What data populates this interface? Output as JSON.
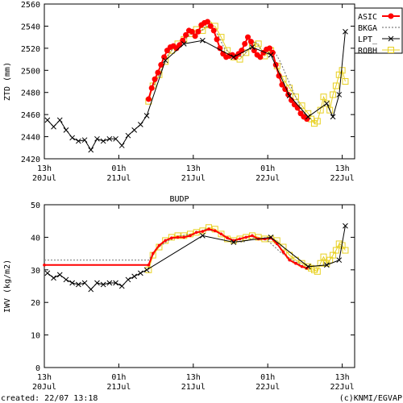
{
  "footer": {
    "created": "created: 22/07 13:18",
    "credit": "(c)KNMI/EGVAP"
  },
  "colors": {
    "asic": "#ff0000",
    "bkga": "#808080",
    "lpt": "#000000",
    "robh": "#e8d020",
    "robh_fill": "#ffffa0",
    "axis": "#000000"
  },
  "chart_data": [
    {
      "type": "line",
      "title": "",
      "ylabel": "ZTD (mm)",
      "xlabel": "",
      "x_ticks_top_line": [
        "13h",
        "01h",
        "13h",
        "01h",
        "13h"
      ],
      "x_ticks_bottom_line": [
        "20Jul",
        "21Jul",
        "21Jul",
        "22Jul",
        "22Jul"
      ],
      "x_ticks_hours": [
        0,
        12,
        24,
        36,
        48
      ],
      "xlim_hours": [
        0,
        50
      ],
      "ylim": [
        2420,
        2560
      ],
      "yticks": [
        2420,
        2440,
        2460,
        2480,
        2500,
        2520,
        2540,
        2560
      ],
      "legend": {
        "placement": "top-right outside",
        "entries": [
          "ASIC",
          "BKGA",
          "LPT_",
          "ROBH"
        ]
      },
      "series": [
        {
          "name": "ASIC",
          "style": "filled red circles joined by line",
          "x": [
            16.8,
            17.3,
            17.8,
            18.3,
            18.8,
            19.3,
            19.8,
            20.3,
            20.8,
            21.3,
            21.8,
            22.3,
            22.8,
            23.3,
            23.8,
            24.3,
            24.8,
            25.3,
            25.8,
            26.3,
            26.8,
            27.3,
            27.8,
            28.3,
            28.8,
            29.3,
            29.8,
            30.3,
            30.8,
            31.3,
            31.8,
            32.3,
            32.8,
            33.3,
            33.8,
            34.3,
            34.8,
            35.3,
            35.8,
            36.3,
            36.8,
            37.3,
            37.8,
            38.3,
            38.8,
            39.3,
            39.8,
            40.3,
            40.8,
            41.3,
            41.8,
            42.3
          ],
          "y": [
            2474,
            2484,
            2492,
            2498,
            2505,
            2512,
            2518,
            2521,
            2522,
            2520,
            2523,
            2527,
            2532,
            2536,
            2535,
            2531,
            2535,
            2541,
            2543,
            2544,
            2540,
            2536,
            2528,
            2520,
            2515,
            2512,
            2513,
            2514,
            2512,
            2515,
            2518,
            2524,
            2530,
            2526,
            2518,
            2514,
            2512,
            2516,
            2519,
            2520,
            2516,
            2505,
            2495,
            2487,
            2483,
            2478,
            2473,
            2469,
            2466,
            2461,
            2458,
            2456
          ]
        },
        {
          "name": "BKGA",
          "style": "grey dotted line",
          "x": [
            16.8,
            18.0,
            19.0,
            20.0,
            21.0,
            22.0,
            23.0,
            24.0,
            25.0,
            26.0,
            27.0,
            28.0,
            29.0,
            30.0,
            31.0,
            32.0,
            33.0,
            34.0,
            35.0,
            36.0,
            37.0,
            38.0,
            39.0,
            40.0,
            41.0,
            42.0
          ],
          "y": [
            2476,
            2490,
            2502,
            2515,
            2521,
            2523,
            2530,
            2534,
            2534,
            2540,
            2538,
            2532,
            2520,
            2515,
            2512,
            2513,
            2520,
            2526,
            2518,
            2515,
            2518,
            2508,
            2495,
            2482,
            2470,
            2460
          ]
        },
        {
          "name": "LPT_",
          "style": "black crosses joined by line",
          "x": [
            0.5,
            1.5,
            2.5,
            3.5,
            4.5,
            5.5,
            6.5,
            7.5,
            8.5,
            9.5,
            10.5,
            11.5,
            12.5,
            13.5,
            14.5,
            15.5,
            16.5,
            19.5,
            22.5,
            25.5,
            30.5,
            33.5,
            36.5,
            39.5,
            42.5,
            45.5,
            46.5,
            47.5,
            48.5
          ],
          "y": [
            2455,
            2449,
            2455,
            2446,
            2439,
            2436,
            2437,
            2428,
            2438,
            2436,
            2438,
            2438,
            2432,
            2441,
            2446,
            2451,
            2459,
            2509,
            2524,
            2527,
            2512,
            2521,
            2514,
            2477,
            2458,
            2470,
            2458,
            2478,
            2535
          ]
        },
        {
          "name": "ROBH",
          "style": "yellow open squares",
          "x": [
            16.8,
            17.5,
            18.5,
            19.5,
            20.5,
            21.5,
            22.5,
            23.5,
            24.5,
            25.5,
            26.5,
            27.5,
            28.5,
            29.5,
            30.5,
            31.5,
            32.5,
            33.5,
            34.5,
            35.5,
            36.5,
            37.5,
            38.5,
            39.5,
            40.5,
            41.5,
            42.5,
            43.0,
            43.5,
            44.0,
            44.5,
            45.0,
            45.5,
            46.0,
            46.5,
            47.0,
            47.5,
            48.0,
            48.5
          ],
          "y": [
            2472,
            2486,
            2496,
            2508,
            2518,
            2524,
            2528,
            2533,
            2537,
            2536,
            2541,
            2540,
            2530,
            2518,
            2512,
            2510,
            2516,
            2523,
            2524,
            2513,
            2518,
            2504,
            2492,
            2484,
            2476,
            2468,
            2461,
            2456,
            2452,
            2454,
            2464,
            2476,
            2470,
            2464,
            2478,
            2486,
            2496,
            2500,
            2490
          ]
        }
      ]
    },
    {
      "type": "line",
      "title": "BUDP",
      "ylabel": "IWV (kg/m2)",
      "xlabel": "",
      "x_ticks_top_line": [
        "13h",
        "01h",
        "13h",
        "01h",
        "13h"
      ],
      "x_ticks_bottom_line": [
        "20Jul",
        "21Jul",
        "21Jul",
        "22Jul",
        "22Jul"
      ],
      "x_ticks_hours": [
        0,
        12,
        24,
        36,
        48
      ],
      "xlim_hours": [
        0,
        50
      ],
      "ylim": [
        0,
        50
      ],
      "yticks": [
        0,
        10,
        20,
        30,
        40,
        50
      ],
      "series": [
        {
          "name": "BKGA",
          "style": "grey dotted line",
          "x": [
            0,
            16.8,
            18,
            20,
            22,
            24,
            26,
            28,
            30,
            32,
            34,
            36,
            38,
            40,
            42
          ],
          "y": [
            33.0,
            33.0,
            36.5,
            39.0,
            40.5,
            41.0,
            42.5,
            41.5,
            39.0,
            38.5,
            40.0,
            39.0,
            35.5,
            33.0,
            31.0
          ]
        },
        {
          "name": "ASIC",
          "style": "red line with small dots",
          "x": [
            0,
            16.8,
            17.5,
            18.5,
            19.5,
            20.5,
            21.5,
            22.5,
            23.5,
            24.5,
            25.5,
            26.5,
            27.5,
            28.5,
            29.5,
            30.5,
            31.5,
            32.5,
            33.5,
            34.5,
            35.5,
            36.5,
            37.5,
            38.5,
            39.5,
            40.5,
            41.5,
            42.3
          ],
          "y": [
            31.5,
            31.5,
            35.0,
            37.5,
            39.0,
            39.8,
            40.0,
            40.0,
            40.5,
            41.5,
            41.8,
            42.5,
            42.0,
            41.0,
            39.8,
            39.0,
            39.5,
            40.0,
            40.5,
            39.5,
            39.5,
            39.8,
            38.0,
            35.5,
            33.0,
            32.0,
            31.0,
            30.5
          ]
        },
        {
          "name": "LPT_",
          "style": "black crosses joined by line",
          "x": [
            0.5,
            1.5,
            2.5,
            3.5,
            4.5,
            5.5,
            6.5,
            7.5,
            8.5,
            9.5,
            10.5,
            11.5,
            12.5,
            13.5,
            14.5,
            15.5,
            16.5,
            25.5,
            30.5,
            36.5,
            42.5,
            45.5,
            47.5,
            48.5
          ],
          "y": [
            29.0,
            27.5,
            28.5,
            27.0,
            26.0,
            25.5,
            26.0,
            24.0,
            26.0,
            25.5,
            26.0,
            26.0,
            25.0,
            27.0,
            28.0,
            29.0,
            30.0,
            40.5,
            38.5,
            40.0,
            31.0,
            31.5,
            33.0,
            43.5
          ]
        },
        {
          "name": "ROBH",
          "style": "yellow open squares",
          "x": [
            16.8,
            17.5,
            18.5,
            19.5,
            20.5,
            21.5,
            22.5,
            23.5,
            24.5,
            25.5,
            26.5,
            27.5,
            28.5,
            29.5,
            30.5,
            31.5,
            32.5,
            33.5,
            34.5,
            35.5,
            36.5,
            37.5,
            38.5,
            39.5,
            40.5,
            41.5,
            42.5,
            43.0,
            43.5,
            44.0,
            44.5,
            45.0,
            45.5,
            46.0,
            46.5,
            47.0,
            47.5,
            48.0,
            48.5
          ],
          "y": [
            30.0,
            34.5,
            37.0,
            39.0,
            40.0,
            40.5,
            40.5,
            41.0,
            41.5,
            42.0,
            43.0,
            42.5,
            41.0,
            39.5,
            39.0,
            39.5,
            40.0,
            40.5,
            40.0,
            39.5,
            39.5,
            39.0,
            37.0,
            34.5,
            33.0,
            32.0,
            31.0,
            30.5,
            30.0,
            29.5,
            32.0,
            34.0,
            32.0,
            33.0,
            34.5,
            36.0,
            38.0,
            37.5,
            36.0
          ]
        }
      ]
    }
  ]
}
